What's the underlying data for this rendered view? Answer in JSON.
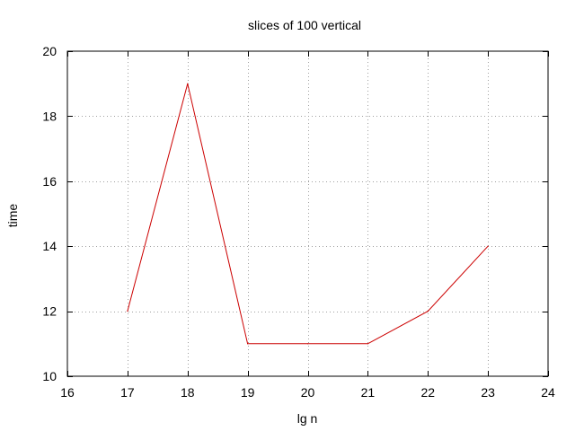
{
  "chart_data": {
    "type": "line",
    "title": "slices of 100 vertical",
    "xlabel": "lg n",
    "ylabel": "time",
    "xlim": [
      16,
      24
    ],
    "ylim": [
      10,
      20
    ],
    "xticks": [
      "16",
      "17",
      "18",
      "19",
      "20",
      "21",
      "22",
      "23",
      "24"
    ],
    "yticks": [
      "10",
      "12",
      "14",
      "16",
      "18",
      "20"
    ],
    "grid": true,
    "series": [
      {
        "color": "#cc0000",
        "x": [
          17,
          18,
          19,
          20,
          21,
          22,
          23
        ],
        "y": [
          12,
          19,
          11,
          11,
          11,
          12,
          14
        ]
      }
    ]
  }
}
